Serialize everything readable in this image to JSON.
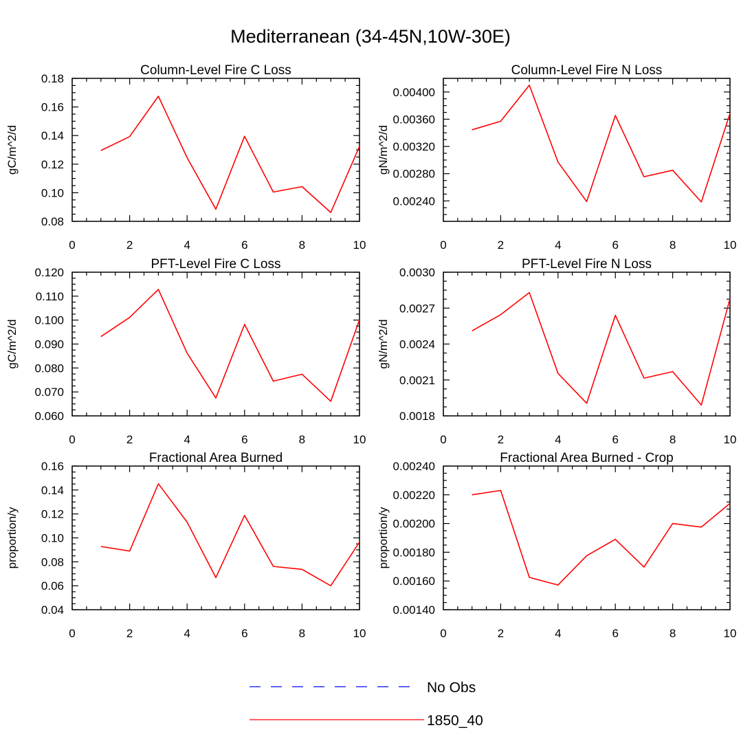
{
  "title": "Mediterranean (34-45N,10W-30E)",
  "legend": {
    "entries": [
      {
        "label": "No Obs",
        "color": "#0000ff",
        "dashed": true
      },
      {
        "label": "1850_40",
        "color": "#ff0000",
        "dashed": false
      }
    ]
  },
  "chart_data": [
    {
      "type": "line",
      "title": "Column-Level Fire C Loss",
      "xlabel": "",
      "ylabel": "gC/m^2/d",
      "xlim": [
        0,
        10
      ],
      "ylim": [
        0.08,
        0.18
      ],
      "xticks": [
        0,
        2,
        4,
        6,
        8,
        10
      ],
      "xtick_labels": [
        "0",
        "2",
        "4",
        "6",
        "8",
        "10"
      ],
      "yticks": [
        0.08,
        0.1,
        0.12,
        0.14,
        0.16,
        0.18
      ],
      "ytick_labels": [
        "0.08",
        "0.10",
        "0.12",
        "0.14",
        "0.16",
        "0.18"
      ],
      "series": [
        {
          "name": "1850_40",
          "color": "#ff0000",
          "x": [
            1,
            2,
            3,
            4,
            5,
            6,
            7,
            8,
            9,
            10
          ],
          "values": [
            0.1295,
            0.1393,
            0.1675,
            0.1245,
            0.0885,
            0.1395,
            0.1005,
            0.1043,
            0.0862,
            0.1325
          ]
        }
      ]
    },
    {
      "type": "line",
      "title": "Column-Level Fire N Loss",
      "xlabel": "",
      "ylabel": "gN/m^2/d",
      "xlim": [
        0,
        10
      ],
      "ylim": [
        0.0021,
        0.0042
      ],
      "xticks": [
        0,
        2,
        4,
        6,
        8,
        10
      ],
      "xtick_labels": [
        "0",
        "2",
        "4",
        "6",
        "8",
        "10"
      ],
      "yticks": [
        0.0024,
        0.0028,
        0.0032,
        0.0036,
        0.004
      ],
      "ytick_labels": [
        "0.00240",
        "0.00280",
        "0.00320",
        "0.00360",
        "0.00400"
      ],
      "series": [
        {
          "name": "1850_40",
          "color": "#ff0000",
          "x": [
            1,
            2,
            3,
            4,
            5,
            6,
            7,
            8,
            9,
            10
          ],
          "values": [
            0.003445,
            0.00357,
            0.0041,
            0.00297,
            0.00239,
            0.003655,
            0.002755,
            0.00285,
            0.002385,
            0.003685
          ]
        }
      ]
    },
    {
      "type": "line",
      "title": "PFT-Level Fire C Loss",
      "xlabel": "",
      "ylabel": "gC/m^2/d",
      "xlim": [
        0,
        10
      ],
      "ylim": [
        0.06,
        0.12
      ],
      "xticks": [
        0,
        2,
        4,
        6,
        8,
        10
      ],
      "xtick_labels": [
        "0",
        "2",
        "4",
        "6",
        "8",
        "10"
      ],
      "yticks": [
        0.06,
        0.07,
        0.08,
        0.09,
        0.1,
        0.11,
        0.12
      ],
      "ytick_labels": [
        "0.060",
        "0.070",
        "0.080",
        "0.090",
        "0.100",
        "0.110",
        "0.120"
      ],
      "series": [
        {
          "name": "1850_40",
          "color": "#ff0000",
          "x": [
            1,
            2,
            3,
            4,
            5,
            6,
            7,
            8,
            9,
            10
          ],
          "values": [
            0.0931,
            0.1011,
            0.1128,
            0.0862,
            0.0675,
            0.0982,
            0.0745,
            0.0774,
            0.0661,
            0.1002
          ]
        }
      ]
    },
    {
      "type": "line",
      "title": "PFT-Level Fire N Loss",
      "xlabel": "",
      "ylabel": "gN/m^2/d",
      "xlim": [
        0,
        10
      ],
      "ylim": [
        0.0018,
        0.003
      ],
      "xticks": [
        0,
        2,
        4,
        6,
        8,
        10
      ],
      "xtick_labels": [
        "0",
        "2",
        "4",
        "6",
        "8",
        "10"
      ],
      "yticks": [
        0.0018,
        0.0021,
        0.0024,
        0.0027,
        0.003
      ],
      "ytick_labels": [
        "0.0018",
        "0.0021",
        "0.0024",
        "0.0027",
        "0.0030"
      ],
      "series": [
        {
          "name": "1850_40",
          "color": "#ff0000",
          "x": [
            1,
            2,
            3,
            4,
            5,
            6,
            7,
            8,
            9,
            10
          ],
          "values": [
            0.00251,
            0.002645,
            0.00283,
            0.002155,
            0.001905,
            0.00264,
            0.002115,
            0.00217,
            0.00189,
            0.00278
          ]
        }
      ]
    },
    {
      "type": "line",
      "title": "Fractional Area Burned",
      "xlabel": "",
      "ylabel": "proportion/y",
      "xlim": [
        0,
        10
      ],
      "ylim": [
        0.04,
        0.16
      ],
      "xticks": [
        0,
        2,
        4,
        6,
        8,
        10
      ],
      "xtick_labels": [
        "0",
        "2",
        "4",
        "6",
        "8",
        "10"
      ],
      "yticks": [
        0.04,
        0.06,
        0.08,
        0.1,
        0.12,
        0.14,
        0.16
      ],
      "ytick_labels": [
        "0.04",
        "0.06",
        "0.08",
        "0.10",
        "0.12",
        "0.14",
        "0.16"
      ],
      "series": [
        {
          "name": "1850_40",
          "color": "#ff0000",
          "x": [
            1,
            2,
            3,
            4,
            5,
            6,
            7,
            8,
            9,
            10
          ],
          "values": [
            0.0928,
            0.089,
            0.1452,
            0.1132,
            0.0668,
            0.1188,
            0.0762,
            0.0737,
            0.06,
            0.0965
          ]
        }
      ]
    },
    {
      "type": "line",
      "title": "Fractional Area Burned - Crop",
      "xlabel": "",
      "ylabel": "proportion/y",
      "xlim": [
        0,
        10
      ],
      "ylim": [
        0.0014,
        0.0024
      ],
      "xticks": [
        0,
        2,
        4,
        6,
        8,
        10
      ],
      "xtick_labels": [
        "0",
        "2",
        "4",
        "6",
        "8",
        "10"
      ],
      "yticks": [
        0.0014,
        0.0016,
        0.0018,
        0.002,
        0.0022,
        0.0024
      ],
      "ytick_labels": [
        "0.00140",
        "0.00160",
        "0.00180",
        "0.00200",
        "0.00220",
        "0.00240"
      ],
      "series": [
        {
          "name": "1850_40",
          "color": "#ff0000",
          "x": [
            1,
            2,
            3,
            4,
            5,
            6,
            7,
            8,
            9,
            10
          ],
          "values": [
            0.0022,
            0.00223,
            0.001625,
            0.001572,
            0.001776,
            0.00189,
            0.001697,
            0.002,
            0.001975,
            0.00214
          ]
        }
      ]
    }
  ]
}
